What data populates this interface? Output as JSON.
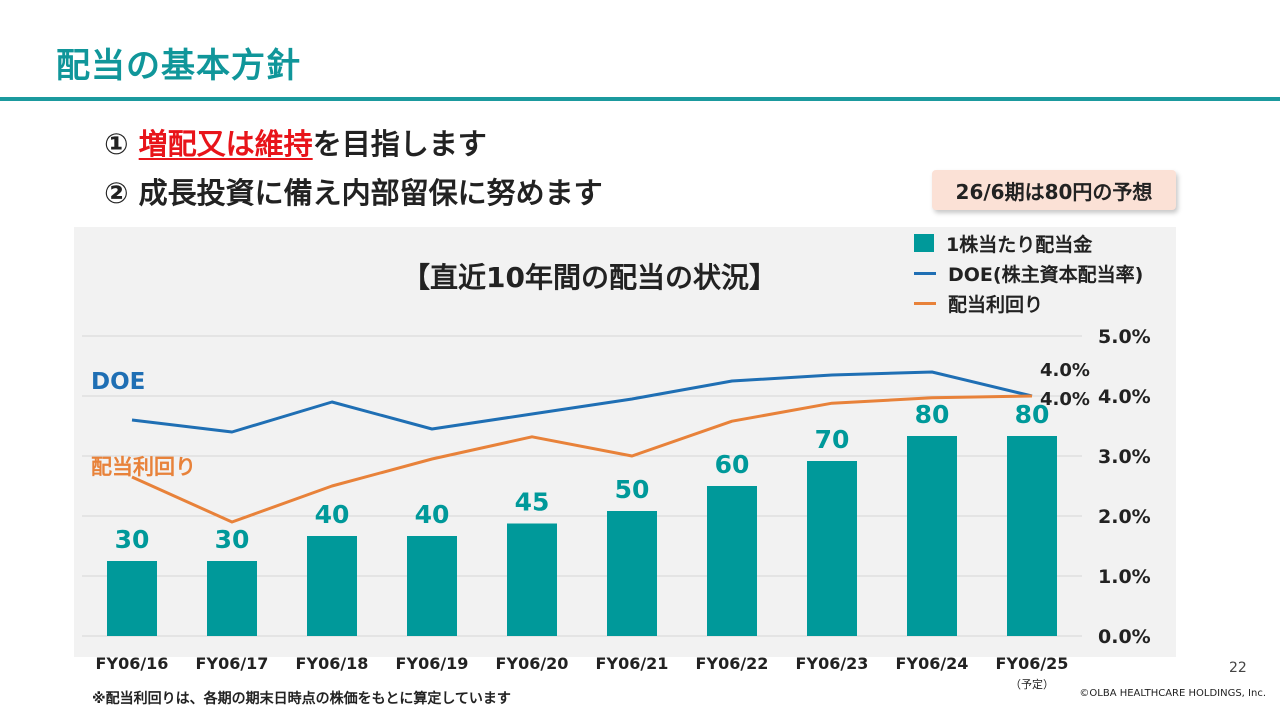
{
  "title": "配当の基本方針",
  "policies": [
    {
      "number": "①",
      "highlight": "増配又は維持",
      "rest": "を目指します"
    },
    {
      "number": "②",
      "highlight": "",
      "rest": "成長投資に備え内部留保に努めます"
    }
  ],
  "forecast_note": "26/6期は80円の予想",
  "footnote": "※配当利回りは、各期の期末日時点の株価をもとに算定しています",
  "copyright": "©OLBA HEALTHCARE HOLDINGS, Inc.",
  "page_number": "22",
  "colors": {
    "accent": "#10969a",
    "bar": "#00999a",
    "doe": "#1f6fb4",
    "yield": "#e8823a",
    "highlight": "#e8141a"
  },
  "chart_data": {
    "type": "bar",
    "title": "【直近10年間の配当の状況】",
    "categories": [
      "FY06/16",
      "FY06/17",
      "FY06/18",
      "FY06/19",
      "FY06/20",
      "FY06/21",
      "FY06/22",
      "FY06/23",
      "FY06/24",
      "FY06/25"
    ],
    "category_notes": {
      "FY06/25": "（予定）"
    },
    "legend": [
      "1株当たり配当金",
      "DOE(株主資本配当率)",
      "配当利回り"
    ],
    "legend_position": "top-right",
    "series": [
      {
        "name": "1株当たり配当金",
        "type": "bar",
        "values": [
          30,
          30,
          40,
          40,
          45,
          50,
          60,
          70,
          80,
          80
        ]
      },
      {
        "name": "DOE(株主資本配当率)",
        "label": "DOE",
        "type": "line",
        "axis": "right",
        "values": [
          3.6,
          3.4,
          3.9,
          3.45,
          3.7,
          3.95,
          4.25,
          4.35,
          4.4,
          4.0
        ]
      },
      {
        "name": "配当利回り",
        "label": "配当利回り",
        "type": "line",
        "axis": "right",
        "values": [
          2.65,
          1.9,
          2.5,
          2.95,
          3.32,
          3.0,
          3.58,
          3.88,
          3.97,
          4.0
        ]
      }
    ],
    "bar_ylim": [
      0,
      120
    ],
    "y2_ticks": [
      "0.0%",
      "1.0%",
      "2.0%",
      "3.0%",
      "4.0%",
      "5.0%"
    ],
    "y2lim": [
      0,
      5
    ],
    "end_labels": {
      "doe": "4.0%",
      "yield": "4.0%"
    },
    "grid": true
  }
}
